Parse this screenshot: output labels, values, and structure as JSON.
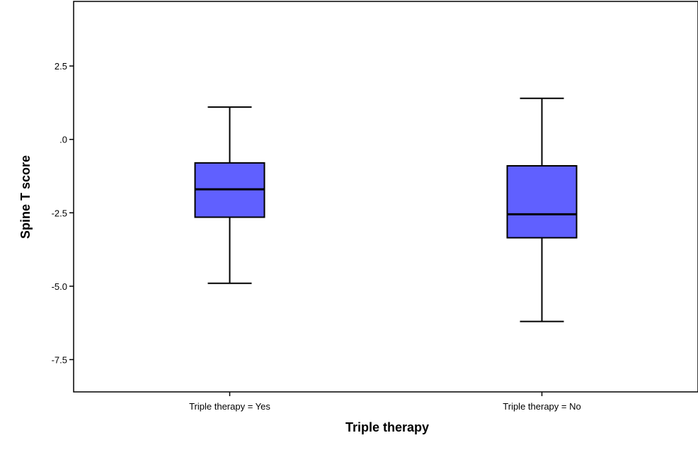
{
  "chart_data": {
    "type": "box",
    "xlabel": "Triple therapy",
    "ylabel": "Spine T score",
    "ylim": [
      -8.6,
      4.7
    ],
    "yticks": [
      2.5,
      0.0,
      -2.5,
      -5.0,
      -7.5
    ],
    "ytick_labels": [
      "2.5",
      ".0",
      "-2.5",
      "-5.0",
      "-7.5"
    ],
    "categories": [
      "Triple therapy = Yes",
      "Triple therapy = No"
    ],
    "boxes": [
      {
        "category": "Triple therapy = Yes",
        "whisker_low": -4.9,
        "q1": -2.65,
        "median": -1.7,
        "q3": -0.8,
        "whisker_high": 1.1
      },
      {
        "category": "Triple therapy = No",
        "whisker_low": -6.2,
        "q1": -3.35,
        "median": -2.55,
        "q3": -0.9,
        "whisker_high": 1.4
      }
    ],
    "box_color": "#6060ff",
    "grid": false,
    "legend": "none"
  }
}
